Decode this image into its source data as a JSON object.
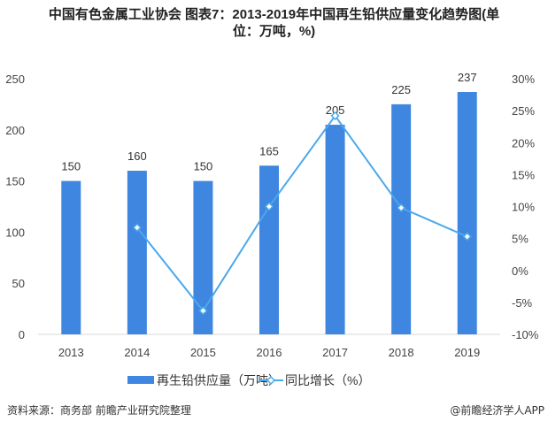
{
  "chart_data": {
    "type": "bar+line",
    "title_line1": "中国有色金属工业协会 图表7：2013-2019年中国再生铅供应量变化趋势图(单",
    "title_line2": "位：万吨，%)",
    "categories": [
      "2013",
      "2014",
      "2015",
      "2016",
      "2017",
      "2018",
      "2019"
    ],
    "series": [
      {
        "name": "再生铅供应量（万吨）",
        "type": "bar",
        "axis": "left",
        "values": [
          150,
          160,
          150,
          165,
          205,
          225,
          237
        ],
        "color": "#3f86e0"
      },
      {
        "name": "同比增长（%）",
        "type": "line",
        "axis": "right",
        "values": [
          null,
          6.7,
          -6.3,
          10.0,
          24.2,
          9.8,
          5.3
        ],
        "color": "#4aa8ec",
        "marker": "diamond"
      }
    ],
    "left_axis": {
      "ylim": [
        0,
        250
      ],
      "ticks": [
        "0",
        "50",
        "100",
        "150",
        "200",
        "250"
      ]
    },
    "right_axis": {
      "ylim": [
        -10,
        30
      ],
      "ticks": [
        "-10%",
        "-5%",
        "0%",
        "5%",
        "10%",
        "15%",
        "20%",
        "25%",
        "30%"
      ]
    },
    "data_labels": [
      "150",
      "160",
      "150",
      "165",
      "205",
      "225",
      "237"
    ],
    "grid": false,
    "legend_placement": "bottom"
  },
  "footer": {
    "source": "资料来源：商务部 前瞻产业研究院整理",
    "credit": "@前瞻经济学人APP"
  }
}
